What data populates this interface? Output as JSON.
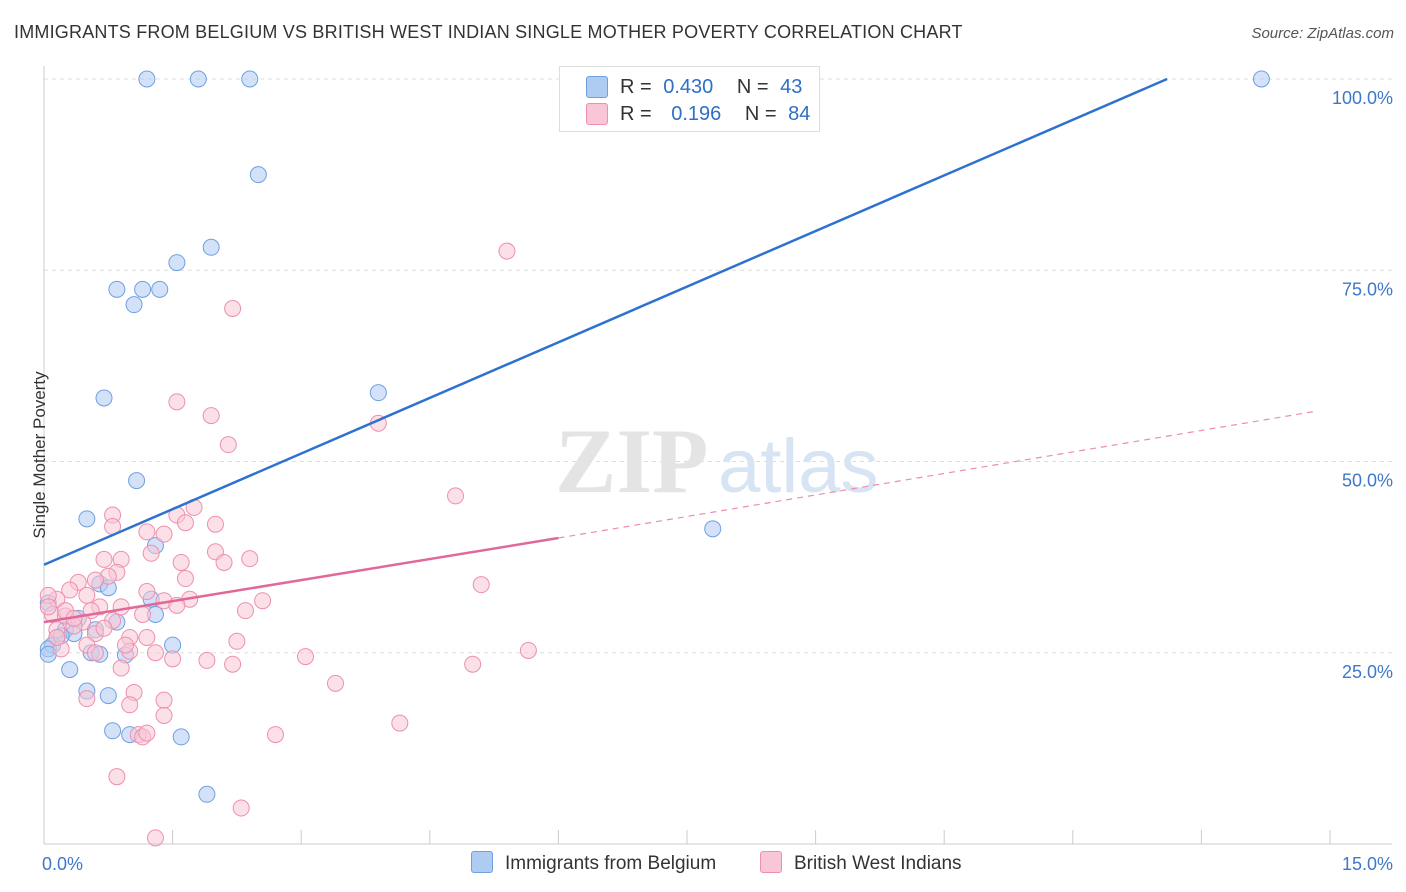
{
  "title": "IMMIGRANTS FROM BELGIUM VS BRITISH WEST INDIAN SINGLE MOTHER POVERTY CORRELATION CHART",
  "source": "Source: ZipAtlas.com",
  "watermark": {
    "zip": "ZIP",
    "atlas": "atlas"
  },
  "legend": {
    "r_label": "R =",
    "n_label": "N =",
    "rows": [
      {
        "r": "0.430",
        "n": "43",
        "color": "#8fb4e8"
      },
      {
        "r": "0.196",
        "n": "84",
        "color": "#f3a6bf"
      }
    ]
  },
  "chart_data": {
    "type": "scatter",
    "title": "IMMIGRANTS FROM BELGIUM VS BRITISH WEST INDIAN SINGLE MOTHER POVERTY CORRELATION CHART",
    "xlabel": "",
    "ylabel": "Single Mother Poverty",
    "xlim": [
      0,
      15
    ],
    "ylim": [
      0,
      100
    ],
    "x_tick_labels": [
      "0.0%",
      "15.0%"
    ],
    "y_tick_labels": [
      "25.0%",
      "50.0%",
      "75.0%",
      "100.0%"
    ],
    "grid": true,
    "legend_position": "top-center",
    "series": [
      {
        "name": "Immigrants from Belgium",
        "color": "#6fa0e0",
        "fill": "#aecbf2",
        "trend": {
          "x0": 0,
          "y0": 36.5,
          "x1": 13.1,
          "y1": 100,
          "style": "solid"
        },
        "points": [
          [
            1.2,
            100
          ],
          [
            1.8,
            100
          ],
          [
            2.4,
            100
          ],
          [
            14.2,
            100
          ],
          [
            2.5,
            87.5
          ],
          [
            1.95,
            78
          ],
          [
            1.55,
            76
          ],
          [
            0.85,
            72.5
          ],
          [
            1.15,
            72.5
          ],
          [
            1.35,
            72.5
          ],
          [
            1.05,
            70.5
          ],
          [
            3.9,
            59
          ],
          [
            0.7,
            58.3
          ],
          [
            1.08,
            47.5
          ],
          [
            0.5,
            42.5
          ],
          [
            1.3,
            39
          ],
          [
            7.8,
            41.2
          ],
          [
            0.65,
            34
          ],
          [
            0.75,
            33.5
          ],
          [
            1.25,
            32
          ],
          [
            0.05,
            31.5
          ],
          [
            0.4,
            29.5
          ],
          [
            0.85,
            29
          ],
          [
            0.25,
            28
          ],
          [
            0.6,
            28
          ],
          [
            0.15,
            27
          ],
          [
            1.3,
            30
          ],
          [
            0.35,
            27.5
          ],
          [
            0.1,
            26
          ],
          [
            0.05,
            25.5
          ],
          [
            0.55,
            25
          ],
          [
            0.65,
            24.8
          ],
          [
            0.95,
            24.7
          ],
          [
            1.5,
            26
          ],
          [
            0.3,
            22.8
          ],
          [
            0.5,
            20
          ],
          [
            0.75,
            19.4
          ],
          [
            0.8,
            14.8
          ],
          [
            1.0,
            14.3
          ],
          [
            1.6,
            14
          ],
          [
            0.05,
            24.8
          ],
          [
            1.9,
            6.5
          ],
          [
            0.2,
            27.2
          ]
        ]
      },
      {
        "name": "British West Indians",
        "color": "#ee8fae",
        "fill": "#f8c6d6",
        "trend": {
          "x0": 0,
          "y0": 29,
          "x1": 6.0,
          "y1": 40,
          "style": "solid",
          "dash_to_x": 14.8,
          "dash_to_y": 56.5
        },
        "points": [
          [
            5.4,
            77.5
          ],
          [
            2.2,
            70
          ],
          [
            1.55,
            57.8
          ],
          [
            1.95,
            56
          ],
          [
            3.9,
            55
          ],
          [
            2.15,
            52.2
          ],
          [
            4.8,
            45.5
          ],
          [
            0.8,
            43
          ],
          [
            1.55,
            43
          ],
          [
            1.75,
            44
          ],
          [
            1.2,
            40.8
          ],
          [
            2.0,
            41.8
          ],
          [
            1.65,
            42
          ],
          [
            0.8,
            41.5
          ],
          [
            1.4,
            40.5
          ],
          [
            2.0,
            38.2
          ],
          [
            0.7,
            37.2
          ],
          [
            0.9,
            37.2
          ],
          [
            1.25,
            38
          ],
          [
            1.6,
            36.8
          ],
          [
            2.4,
            37.3
          ],
          [
            2.1,
            36.8
          ],
          [
            0.85,
            35.5
          ],
          [
            0.75,
            35
          ],
          [
            0.6,
            34.5
          ],
          [
            0.4,
            34.2
          ],
          [
            1.65,
            34.7
          ],
          [
            5.1,
            33.9
          ],
          [
            0.3,
            33.2
          ],
          [
            1.2,
            33
          ],
          [
            0.5,
            32.5
          ],
          [
            0.15,
            32
          ],
          [
            1.4,
            31.8
          ],
          [
            1.7,
            32
          ],
          [
            2.55,
            31.8
          ],
          [
            0.05,
            32.5
          ],
          [
            0.65,
            31
          ],
          [
            0.9,
            31
          ],
          [
            1.55,
            31.2
          ],
          [
            2.35,
            30.5
          ],
          [
            0.55,
            30.5
          ],
          [
            1.15,
            30
          ],
          [
            0.1,
            30
          ],
          [
            0.25,
            29.8
          ],
          [
            0.45,
            29
          ],
          [
            0.8,
            29.2
          ],
          [
            0.35,
            28.5
          ],
          [
            0.15,
            28
          ],
          [
            0.6,
            27.5
          ],
          [
            1.0,
            27
          ],
          [
            1.2,
            27
          ],
          [
            2.25,
            26.5
          ],
          [
            0.5,
            26
          ],
          [
            0.2,
            25.5
          ],
          [
            1.0,
            25.2
          ],
          [
            1.3,
            25
          ],
          [
            0.6,
            25
          ],
          [
            1.5,
            24.2
          ],
          [
            1.9,
            24
          ],
          [
            2.2,
            23.5
          ],
          [
            3.05,
            24.5
          ],
          [
            5.0,
            23.5
          ],
          [
            5.65,
            25.3
          ],
          [
            0.9,
            23
          ],
          [
            3.4,
            21
          ],
          [
            1.05,
            19.8
          ],
          [
            1.4,
            18.8
          ],
          [
            0.5,
            19
          ],
          [
            1.0,
            18.2
          ],
          [
            1.4,
            16.8
          ],
          [
            4.15,
            15.8
          ],
          [
            1.1,
            14.3
          ],
          [
            1.15,
            14
          ],
          [
            1.2,
            14.5
          ],
          [
            2.7,
            14.3
          ],
          [
            0.85,
            8.8
          ],
          [
            2.3,
            4.7
          ],
          [
            1.3,
            0.8
          ],
          [
            0.25,
            30.5
          ],
          [
            0.05,
            31
          ],
          [
            0.35,
            29.5
          ],
          [
            0.7,
            28.2
          ],
          [
            0.95,
            26
          ],
          [
            0.15,
            27
          ]
        ]
      }
    ]
  }
}
